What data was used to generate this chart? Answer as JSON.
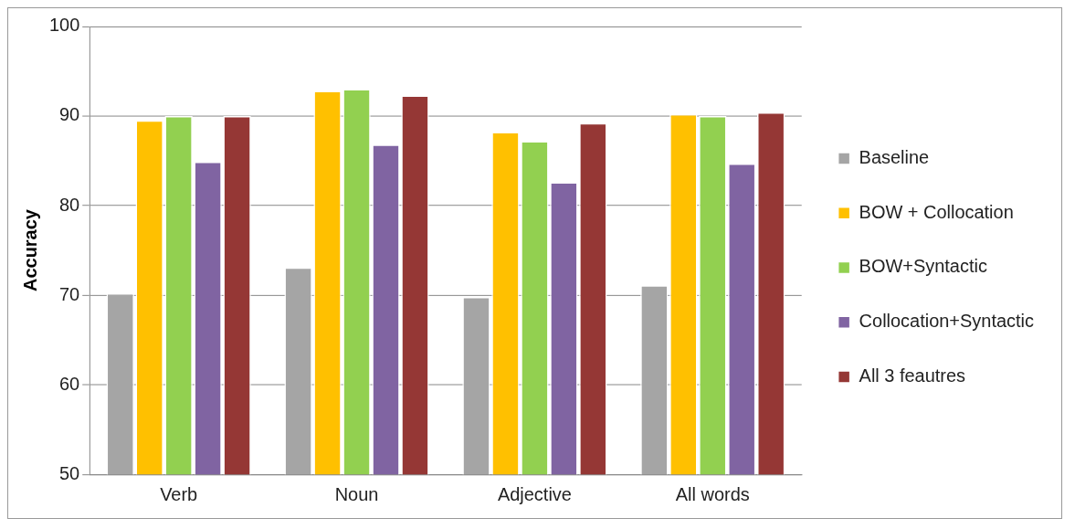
{
  "chart_data": {
    "type": "bar",
    "ylabel": "Accuracy",
    "categories": [
      "Verb",
      "Noun",
      "Adjective",
      "All words"
    ],
    "series": [
      {
        "name": "Baseline",
        "color": "#a5a5a5",
        "values": [
          70.2,
          73.1,
          69.8,
          71.1
        ]
      },
      {
        "name": "BOW + Collocation",
        "color": "#ffc000",
        "values": [
          89.5,
          92.8,
          88.2,
          90.2
        ]
      },
      {
        "name": "BOW+Syntactic",
        "color": "#92d050",
        "values": [
          90.0,
          93.0,
          87.2,
          90.0
        ]
      },
      {
        "name": "Collocation+Syntactic",
        "color": "#8064a2",
        "values": [
          84.9,
          86.8,
          82.6,
          84.7
        ]
      },
      {
        "name": "All 3 feautres",
        "color": "#953735",
        "values": [
          90.0,
          92.3,
          89.2,
          90.4
        ]
      }
    ],
    "ylim": [
      50,
      100
    ],
    "yticks": [
      50,
      60,
      70,
      80,
      90,
      100
    ],
    "grid": "y",
    "legend": "right"
  }
}
